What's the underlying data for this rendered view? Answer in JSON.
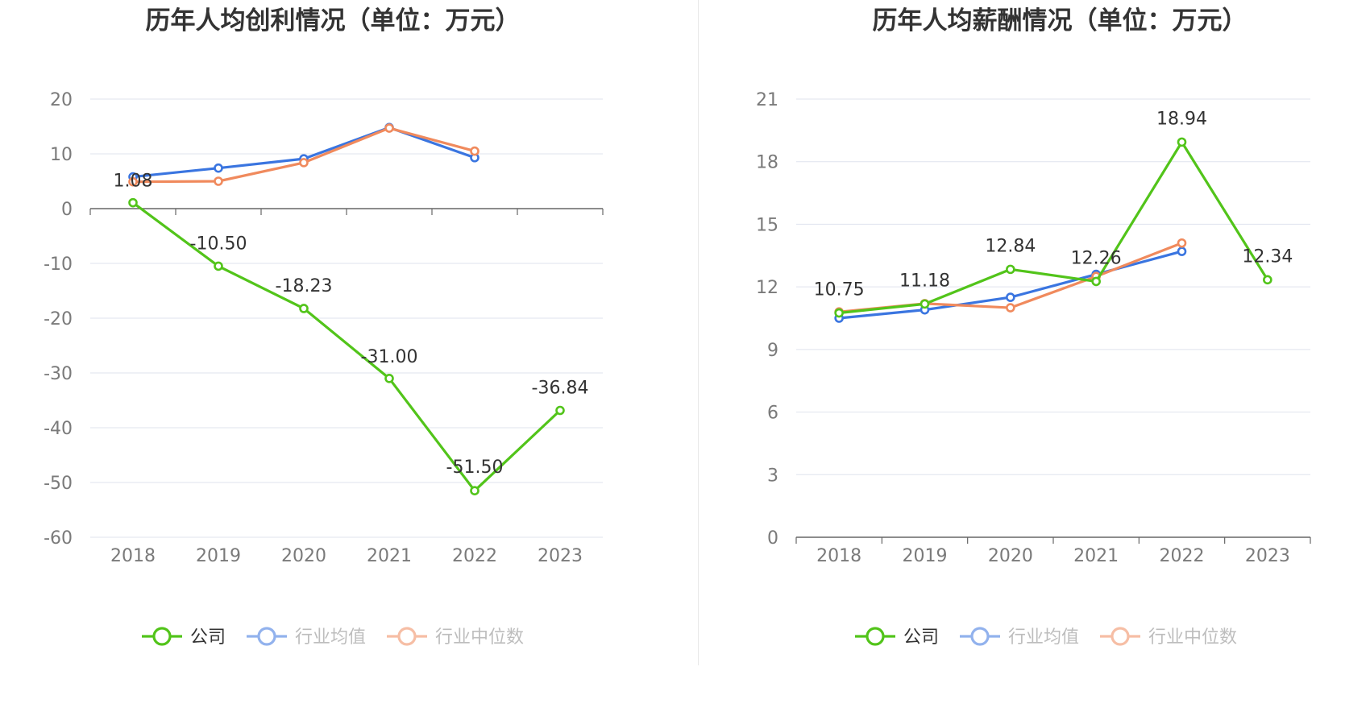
{
  "colors": {
    "company": "#52c41a",
    "industry_avg": "#3a75e0",
    "industry_median": "#f08a5d",
    "grid": "#dfe3ee",
    "axis": "#666666"
  },
  "chart_data": [
    {
      "type": "line",
      "title": "历年人均创利情况（单位：万元）",
      "categories": [
        "2018",
        "2019",
        "2020",
        "2021",
        "2022",
        "2023"
      ],
      "ylim": [
        -60,
        20
      ],
      "yticks": [
        20,
        10,
        0,
        -10,
        -20,
        -30,
        -40,
        -50,
        -60
      ],
      "grid": true,
      "legend_position": "bottom",
      "series": [
        {
          "name": "公司",
          "key": "company",
          "values": [
            1.08,
            -10.5,
            -18.23,
            -31.0,
            -51.5,
            -36.84
          ],
          "labels": [
            "1.08",
            "-10.50",
            "-18.23",
            "-31.00",
            "-51.50",
            "-36.84"
          ]
        },
        {
          "name": "行业均值",
          "key": "industry_avg",
          "values": [
            5.8,
            7.4,
            9.1,
            14.8,
            9.3,
            null
          ]
        },
        {
          "name": "行业中位数",
          "key": "industry_median",
          "values": [
            4.9,
            5.0,
            8.4,
            14.7,
            10.5,
            null
          ]
        }
      ]
    },
    {
      "type": "line",
      "title": "历年人均薪酬情况（单位：万元）",
      "categories": [
        "2018",
        "2019",
        "2020",
        "2021",
        "2022",
        "2023"
      ],
      "ylim": [
        0,
        21
      ],
      "yticks": [
        21,
        18,
        15,
        12,
        9,
        6,
        3,
        0
      ],
      "grid": true,
      "legend_position": "bottom",
      "series": [
        {
          "name": "公司",
          "key": "company",
          "values": [
            10.75,
            11.18,
            12.84,
            12.26,
            18.94,
            12.34
          ],
          "labels": [
            "10.75",
            "11.18",
            "12.84",
            "12.26",
            "18.94",
            "12.34"
          ]
        },
        {
          "name": "行业均值",
          "key": "industry_avg",
          "values": [
            10.5,
            10.9,
            11.5,
            12.6,
            13.7,
            null
          ]
        },
        {
          "name": "行业中位数",
          "key": "industry_median",
          "values": [
            10.8,
            11.2,
            11.0,
            12.5,
            14.1,
            null
          ]
        }
      ]
    }
  ]
}
